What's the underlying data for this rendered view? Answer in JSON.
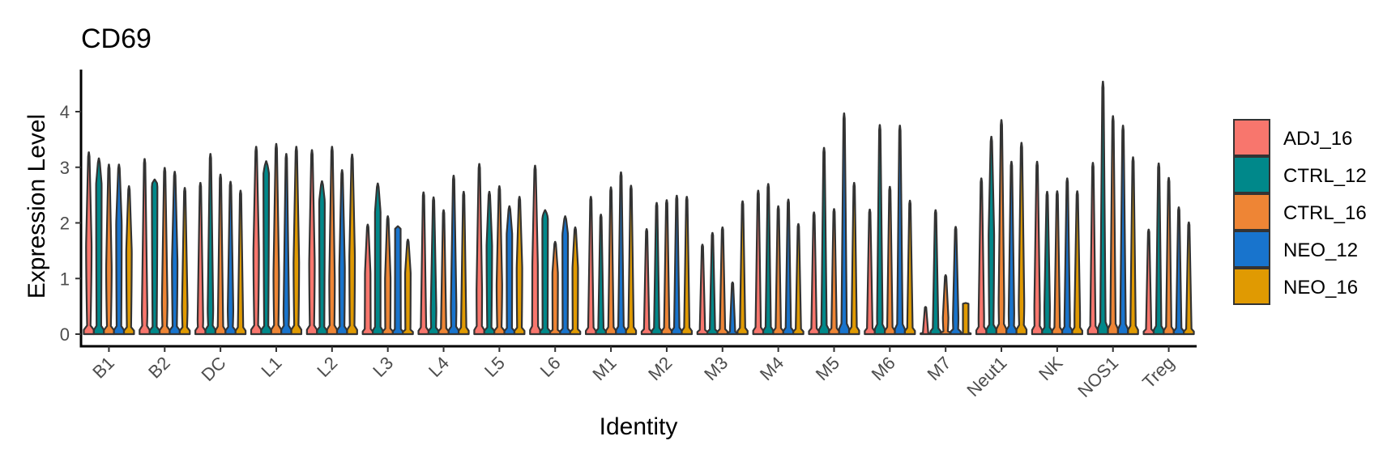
{
  "chart_data": {
    "type": "violin",
    "title": "CD69",
    "xlabel": "Identity",
    "ylabel": "Expression Level",
    "ylim": [
      -0.2,
      4.75
    ],
    "yticks": [
      0,
      1,
      2,
      3,
      4
    ],
    "categories": [
      "B1",
      "B2",
      "DC",
      "L1",
      "L2",
      "L3",
      "L4",
      "L5",
      "L6",
      "M1",
      "M2",
      "M3",
      "M4",
      "M5",
      "M6",
      "M7",
      "Neut1",
      "NK",
      "NOS1",
      "Treg"
    ],
    "legend_position": "right",
    "grid": false,
    "series": [
      {
        "name": "ADJ_16",
        "color": "#F8766D",
        "max": [
          3.27,
          3.15,
          2.72,
          3.37,
          3.31,
          1.97,
          2.55,
          3.06,
          3.03,
          2.47,
          1.89,
          1.61,
          2.58,
          2.19,
          2.24,
          0.49,
          2.8,
          3.1,
          3.08,
          1.88
        ],
        "upper": [
          1.6,
          0.4,
          0.25,
          1.5,
          1.3,
          1.1,
          0.02,
          0.8,
          1.25,
          0.03,
          0.0,
          0.0,
          0.0,
          0.0,
          0.1,
          0.0,
          0.3,
          0.5,
          0.0,
          0.0
        ],
        "width": [
          0.3,
          0.4,
          0.4,
          0.35,
          0.4,
          0.6,
          0.3,
          0.5,
          0.6,
          0.3,
          0.3,
          0.3,
          0.3,
          0.3,
          0.5,
          0.3,
          0.5,
          0.5,
          0.3,
          0.3
        ]
      },
      {
        "name": "CTRL_12",
        "color": "#00888A",
        "max": [
          3.16,
          2.78,
          3.24,
          3.11,
          2.75,
          2.71,
          2.46,
          2.56,
          2.23,
          2.15,
          2.36,
          1.82,
          2.7,
          3.35,
          3.76,
          2.23,
          3.55,
          2.56,
          4.54,
          3.07
        ],
        "upper": [
          2.7,
          2.7,
          0.45,
          2.9,
          2.4,
          2.2,
          0.45,
          1.6,
          2.1,
          0.0,
          0.0,
          0.0,
          0.0,
          0.0,
          0.3,
          0.12,
          1.8,
          0.5,
          0.0,
          0.0
        ],
        "width": [
          0.45,
          0.4,
          0.35,
          0.4,
          0.45,
          0.55,
          0.45,
          0.4,
          0.5,
          0.3,
          0.3,
          0.3,
          0.3,
          0.3,
          0.4,
          0.45,
          0.4,
          0.5,
          0.3,
          0.3
        ]
      },
      {
        "name": "CTRL_16",
        "color": "#EE8535",
        "max": [
          3.05,
          2.99,
          2.87,
          3.42,
          3.37,
          2.12,
          2.23,
          2.66,
          1.66,
          2.64,
          2.41,
          1.92,
          2.3,
          2.25,
          2.65,
          1.06,
          3.85,
          2.57,
          3.92,
          2.81
        ],
        "upper": [
          1.2,
          0.6,
          0.05,
          1.1,
          1.0,
          1.0,
          0.0,
          0.9,
          1.1,
          0.0,
          0.0,
          0.0,
          0.0,
          0.0,
          0.0,
          0.3,
          0.6,
          0.12,
          0.0,
          0.0
        ],
        "width": [
          0.35,
          0.4,
          0.3,
          0.4,
          0.45,
          0.5,
          0.3,
          0.4,
          0.5,
          0.3,
          0.3,
          0.3,
          0.3,
          0.3,
          0.3,
          0.4,
          0.45,
          0.45,
          0.3,
          0.3
        ]
      },
      {
        "name": "NEO_12",
        "color": "#1874CD",
        "max": [
          3.05,
          2.92,
          2.74,
          3.24,
          2.95,
          1.94,
          2.85,
          2.3,
          2.12,
          2.91,
          2.49,
          0.93,
          2.42,
          3.97,
          3.75,
          1.93,
          3.1,
          2.8,
          3.75,
          2.28
        ],
        "upper": [
          2.0,
          1.3,
          0.45,
          0.4,
          1.2,
          1.9,
          0.5,
          1.8,
          1.8,
          0.1,
          0.0,
          0.0,
          0.0,
          0.0,
          0.12,
          0.3,
          0.4,
          0.25,
          0.2,
          0.0
        ],
        "width": [
          0.45,
          0.4,
          0.4,
          0.4,
          0.45,
          0.6,
          0.45,
          0.5,
          0.5,
          0.6,
          0.3,
          0.3,
          0.3,
          0.3,
          0.5,
          0.45,
          0.45,
          0.5,
          0.45,
          0.3
        ]
      },
      {
        "name": "NEO_16",
        "color": "#E09A02",
        "max": [
          2.66,
          2.63,
          2.58,
          3.37,
          3.23,
          1.7,
          2.56,
          2.47,
          1.92,
          2.67,
          2.47,
          2.39,
          1.98,
          2.72,
          2.4,
          0.56,
          3.44,
          2.57,
          3.18,
          2.01
        ],
        "upper": [
          1.5,
          0.5,
          0.0,
          1.3,
          1.4,
          1.1,
          0.0,
          1.2,
          1.2,
          0.0,
          0.0,
          0.0,
          0.0,
          0.0,
          0.05,
          0.56,
          0.55,
          0.35,
          0.0,
          0.0
        ],
        "width": [
          0.4,
          0.4,
          0.3,
          0.4,
          0.45,
          0.5,
          0.3,
          0.45,
          0.5,
          0.3,
          0.3,
          0.3,
          0.3,
          0.3,
          0.4,
          0.55,
          0.4,
          0.55,
          0.3,
          0.3
        ]
      }
    ]
  }
}
